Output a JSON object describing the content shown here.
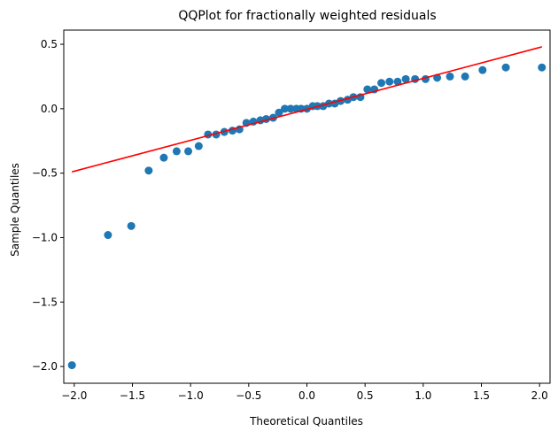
{
  "chart_data": {
    "type": "scatter",
    "title": "QQPlot for fractionally weighted residuals",
    "xlabel": "Theoretical Quantiles",
    "ylabel": "Sample Quantiles",
    "xlim": [
      -2.09,
      2.09
    ],
    "ylim": [
      -2.13,
      0.61
    ],
    "xticks": [
      {
        "value": -2.0,
        "label": "−2.0"
      },
      {
        "value": -1.5,
        "label": "−1.5"
      },
      {
        "value": -1.0,
        "label": "−1.0"
      },
      {
        "value": -0.5,
        "label": "−0.5"
      },
      {
        "value": 0.0,
        "label": "0.0"
      },
      {
        "value": 0.5,
        "label": "0.5"
      },
      {
        "value": 1.0,
        "label": "1.0"
      },
      {
        "value": 1.5,
        "label": "1.5"
      },
      {
        "value": 2.0,
        "label": "2.0"
      }
    ],
    "yticks": [
      {
        "value": -2.0,
        "label": "−2.0"
      },
      {
        "value": -1.5,
        "label": "−1.5"
      },
      {
        "value": -1.0,
        "label": "−1.0"
      },
      {
        "value": -0.5,
        "label": "−0.5"
      },
      {
        "value": 0.0,
        "label": "0.0"
      },
      {
        "value": 0.5,
        "label": "0.5"
      }
    ],
    "grid": false,
    "series": [
      {
        "type": "scatter",
        "color": "#1f77b4",
        "x": [
          -2.02,
          -1.71,
          -1.51,
          -1.36,
          -1.23,
          -1.12,
          -1.02,
          -0.93,
          -0.85,
          -0.78,
          -0.71,
          -0.64,
          -0.58,
          -0.52,
          -0.46,
          -0.4,
          -0.35,
          -0.29,
          -0.24,
          -0.19,
          -0.14,
          -0.09,
          -0.05,
          0.0,
          0.05,
          0.09,
          0.14,
          0.19,
          0.24,
          0.29,
          0.35,
          0.4,
          0.46,
          0.52,
          0.58,
          0.64,
          0.71,
          0.78,
          0.85,
          0.93,
          1.02,
          1.12,
          1.23,
          1.36,
          1.51,
          1.71,
          2.02
        ],
        "y": [
          -1.99,
          -0.98,
          -0.91,
          -0.48,
          -0.38,
          -0.33,
          -0.33,
          -0.29,
          -0.2,
          -0.2,
          -0.18,
          -0.17,
          -0.16,
          -0.11,
          -0.1,
          -0.09,
          -0.08,
          -0.07,
          -0.03,
          0.0,
          0.0,
          0.0,
          0.0,
          0.0,
          0.02,
          0.02,
          0.02,
          0.04,
          0.04,
          0.06,
          0.07,
          0.09,
          0.09,
          0.15,
          0.15,
          0.2,
          0.21,
          0.21,
          0.23,
          0.23,
          0.23,
          0.24,
          0.25,
          0.25,
          0.3,
          0.32,
          0.32
        ]
      },
      {
        "type": "line",
        "color": "#ff0000",
        "x": [
          -2.02,
          2.02
        ],
        "y": [
          -0.49,
          0.48
        ]
      }
    ]
  }
}
